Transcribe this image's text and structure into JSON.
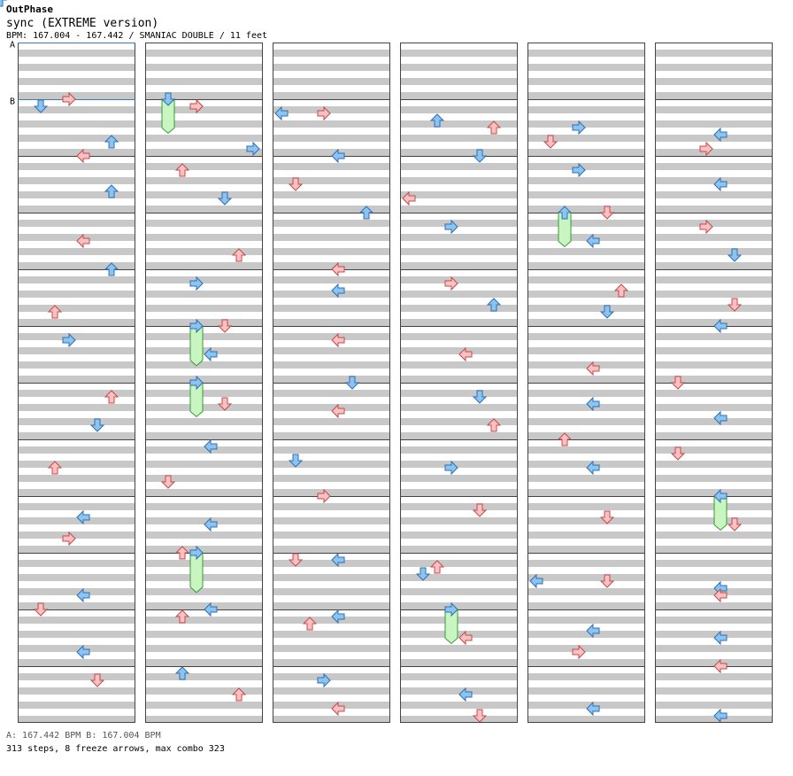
{
  "header": {
    "artist": "OutPhase",
    "song": "sync (EXTREME version)",
    "bpm_line": "BPM: 167.004 - 167.442 / SMANIAC DOUBLE / 11 feet"
  },
  "markers": [
    {
      "label": "A",
      "measure": 0,
      "frac": 0.0
    },
    {
      "label": "B",
      "measure": 1,
      "frac": 0.0
    }
  ],
  "footer": {
    "bpm_legend": "A: 167.442 BPM        B: 167.004 BPM",
    "stats": "313 steps, 8 freeze arrows, max combo 323"
  },
  "colors": {
    "red_fill": "#f8c2c2",
    "red_stroke": "#c84848",
    "blue_fill": "#8cc4f0",
    "blue_stroke": "#2e6eb4",
    "green_fill": "#c8f5c0",
    "green_stroke": "#3a9a3a",
    "stripe": "#c8c8c8",
    "marker_line": "#3a78c8"
  },
  "chart_data": {
    "type": "step-chart",
    "columns": 6,
    "measures_per_column": 12,
    "lanes": 8,
    "notes": [
      [
        1,
        0.125,
        1,
        "b"
      ],
      [
        1,
        0.125,
        3,
        "b"
      ],
      [
        1,
        0.25,
        0,
        "b"
      ],
      [
        1,
        0.375,
        2,
        "b"
      ],
      [
        1,
        0.5,
        3,
        "b"
      ],
      [
        1,
        0.625,
        4,
        "b"
      ],
      [
        1,
        0.75,
        6,
        "b"
      ],
      [
        1,
        0.875,
        7,
        "b"
      ],
      [
        2,
        0.0,
        4,
        "b"
      ],
      [
        2,
        0.0,
        5,
        "b"
      ],
      [
        2,
        0.25,
        3,
        "b"
      ],
      [
        2,
        0.5,
        4,
        "b"
      ],
      [
        2,
        0.625,
        6,
        "b"
      ],
      [
        2,
        0.75,
        5,
        "b"
      ],
      [
        3,
        0.0,
        6,
        "b"
      ],
      [
        3,
        0.25,
        3,
        "b"
      ],
      [
        3,
        0.5,
        4,
        "b"
      ],
      [
        3,
        0.75,
        5,
        "b"
      ],
      [
        4,
        0.0,
        6,
        "b"
      ],
      [
        4,
        0.25,
        3,
        "b"
      ],
      [
        4,
        0.375,
        4,
        "b"
      ],
      [
        4,
        0.625,
        6,
        "b"
      ],
      [
        4,
        0.75,
        5,
        "b"
      ],
      [
        5,
        0.0,
        4,
        "b"
      ],
      [
        5,
        0.25,
        3,
        "b"
      ],
      [
        5,
        0.5,
        4,
        "b"
      ],
      [
        6,
        0.0,
        5,
        "b"
      ],
      [
        6,
        0.25,
        5,
        "b"
      ],
      [
        6,
        0.375,
        4,
        "b"
      ],
      [
        6,
        0.625,
        4,
        "b"
      ],
      [
        6,
        0.75,
        5,
        "b"
      ],
      [
        7,
        0.125,
        4,
        "b"
      ],
      [
        7,
        0.375,
        1,
        "b"
      ],
      [
        7,
        0.5,
        3,
        "b"
      ],
      [
        7,
        0.5,
        4,
        "b"
      ],
      [
        8,
        0.125,
        4,
        "b"
      ],
      [
        8,
        0.375,
        4,
        "b"
      ],
      [
        8,
        0.5,
        4,
        "b"
      ],
      [
        9,
        0.125,
        4,
        "b"
      ],
      [
        9,
        0.375,
        1,
        "b"
      ],
      [
        9,
        0.5,
        0,
        "b"
      ],
      [
        9,
        0.625,
        4,
        "b"
      ],
      [
        9,
        0.75,
        4,
        "b"
      ],
      [
        10,
        0.0,
        4,
        "b"
      ],
      [
        10,
        0.125,
        4,
        "b"
      ],
      [
        10,
        0.25,
        3,
        "b"
      ],
      [
        10,
        0.375,
        4,
        "b"
      ],
      [
        10,
        0.5,
        4,
        "b"
      ],
      [
        10,
        0.75,
        4,
        "b"
      ],
      [
        11,
        0.125,
        2,
        "b"
      ],
      [
        11,
        0.25,
        3,
        "b"
      ],
      [
        11,
        0.5,
        4,
        "b"
      ],
      [
        11,
        0.75,
        4,
        "b"
      ],
      [
        11,
        0.875,
        4,
        "b"
      ],
      [
        1,
        0.0,
        3,
        "r"
      ],
      [
        1,
        0.125,
        3,
        "r"
      ],
      [
        1,
        0.25,
        3,
        "r"
      ],
      [
        1,
        0.5,
        6,
        "r"
      ],
      [
        1,
        0.75,
        1,
        "r"
      ],
      [
        1,
        0.875,
        3,
        "r"
      ],
      [
        2,
        0.0,
        4,
        "r"
      ],
      [
        2,
        0.25,
        2,
        "r"
      ],
      [
        2,
        0.5,
        1,
        "r"
      ],
      [
        2,
        0.75,
        0,
        "r"
      ],
      [
        3,
        0.0,
        5,
        "r"
      ],
      [
        3,
        0.25,
        3,
        "r"
      ],
      [
        3,
        0.5,
        4,
        "r"
      ],
      [
        3,
        0.75,
        6,
        "r"
      ],
      [
        4,
        0.0,
        4,
        "r"
      ],
      [
        4,
        0.25,
        3,
        "r"
      ],
      [
        4,
        0.375,
        6,
        "r"
      ],
      [
        4,
        0.625,
        5,
        "r"
      ],
      [
        4,
        0.75,
        2,
        "r"
      ],
      [
        5,
        0.0,
        5,
        "r"
      ],
      [
        5,
        0.25,
        4,
        "r"
      ],
      [
        5,
        0.5,
        4,
        "r"
      ],
      [
        5,
        0.75,
        4,
        "r"
      ],
      [
        6,
        0.0,
        1,
        "r"
      ],
      [
        6,
        0.25,
        6,
        "r"
      ],
      [
        6,
        0.375,
        5,
        "r"
      ],
      [
        6,
        0.5,
        4,
        "r"
      ],
      [
        6,
        0.75,
        6,
        "r"
      ],
      [
        7,
        0.0,
        2,
        "r"
      ],
      [
        7,
        0.25,
        1,
        "r"
      ],
      [
        7,
        0.5,
        2,
        "r"
      ],
      [
        7,
        0.75,
        1,
        "r"
      ],
      [
        8,
        0.0,
        3,
        "r"
      ],
      [
        8,
        0.25,
        5,
        "r"
      ],
      [
        8,
        0.375,
        5,
        "r"
      ],
      [
        8,
        0.5,
        5,
        "r"
      ],
      [
        8,
        0.75,
        3,
        "r"
      ],
      [
        9,
        0.0,
        2,
        "r"
      ],
      [
        9,
        0.125,
        1,
        "r"
      ],
      [
        9,
        0.25,
        2,
        "r"
      ],
      [
        9,
        0.5,
        5,
        "r"
      ],
      [
        9,
        0.75,
        4,
        "r"
      ],
      [
        10,
        0.0,
        1,
        "r"
      ],
      [
        10,
        0.125,
        2,
        "r"
      ],
      [
        10,
        0.25,
        2,
        "r"
      ],
      [
        10,
        0.5,
        4,
        "r"
      ],
      [
        10,
        0.75,
        3,
        "r"
      ],
      [
        11,
        0.0,
        4,
        "r"
      ],
      [
        11,
        0.25,
        5,
        "r"
      ],
      [
        11,
        0.5,
        6,
        "r"
      ],
      [
        11,
        0.75,
        4,
        "r"
      ],
      [
        11,
        0.875,
        5,
        "r"
      ]
    ],
    "freezes": [
      [
        1,
        1.0,
        1,
        0.6
      ],
      [
        2,
        3.0,
        4,
        0.6
      ],
      [
        2,
        4.0,
        6,
        0.6
      ],
      [
        3,
        5.0,
        1,
        0.7
      ],
      [
        3,
        6.0,
        1,
        0.6
      ],
      [
        4,
        8.0,
        5,
        0.6
      ],
      [
        3,
        9.0,
        1,
        0.7
      ],
      [
        3,
        10.0,
        3,
        0.6
      ]
    ]
  }
}
